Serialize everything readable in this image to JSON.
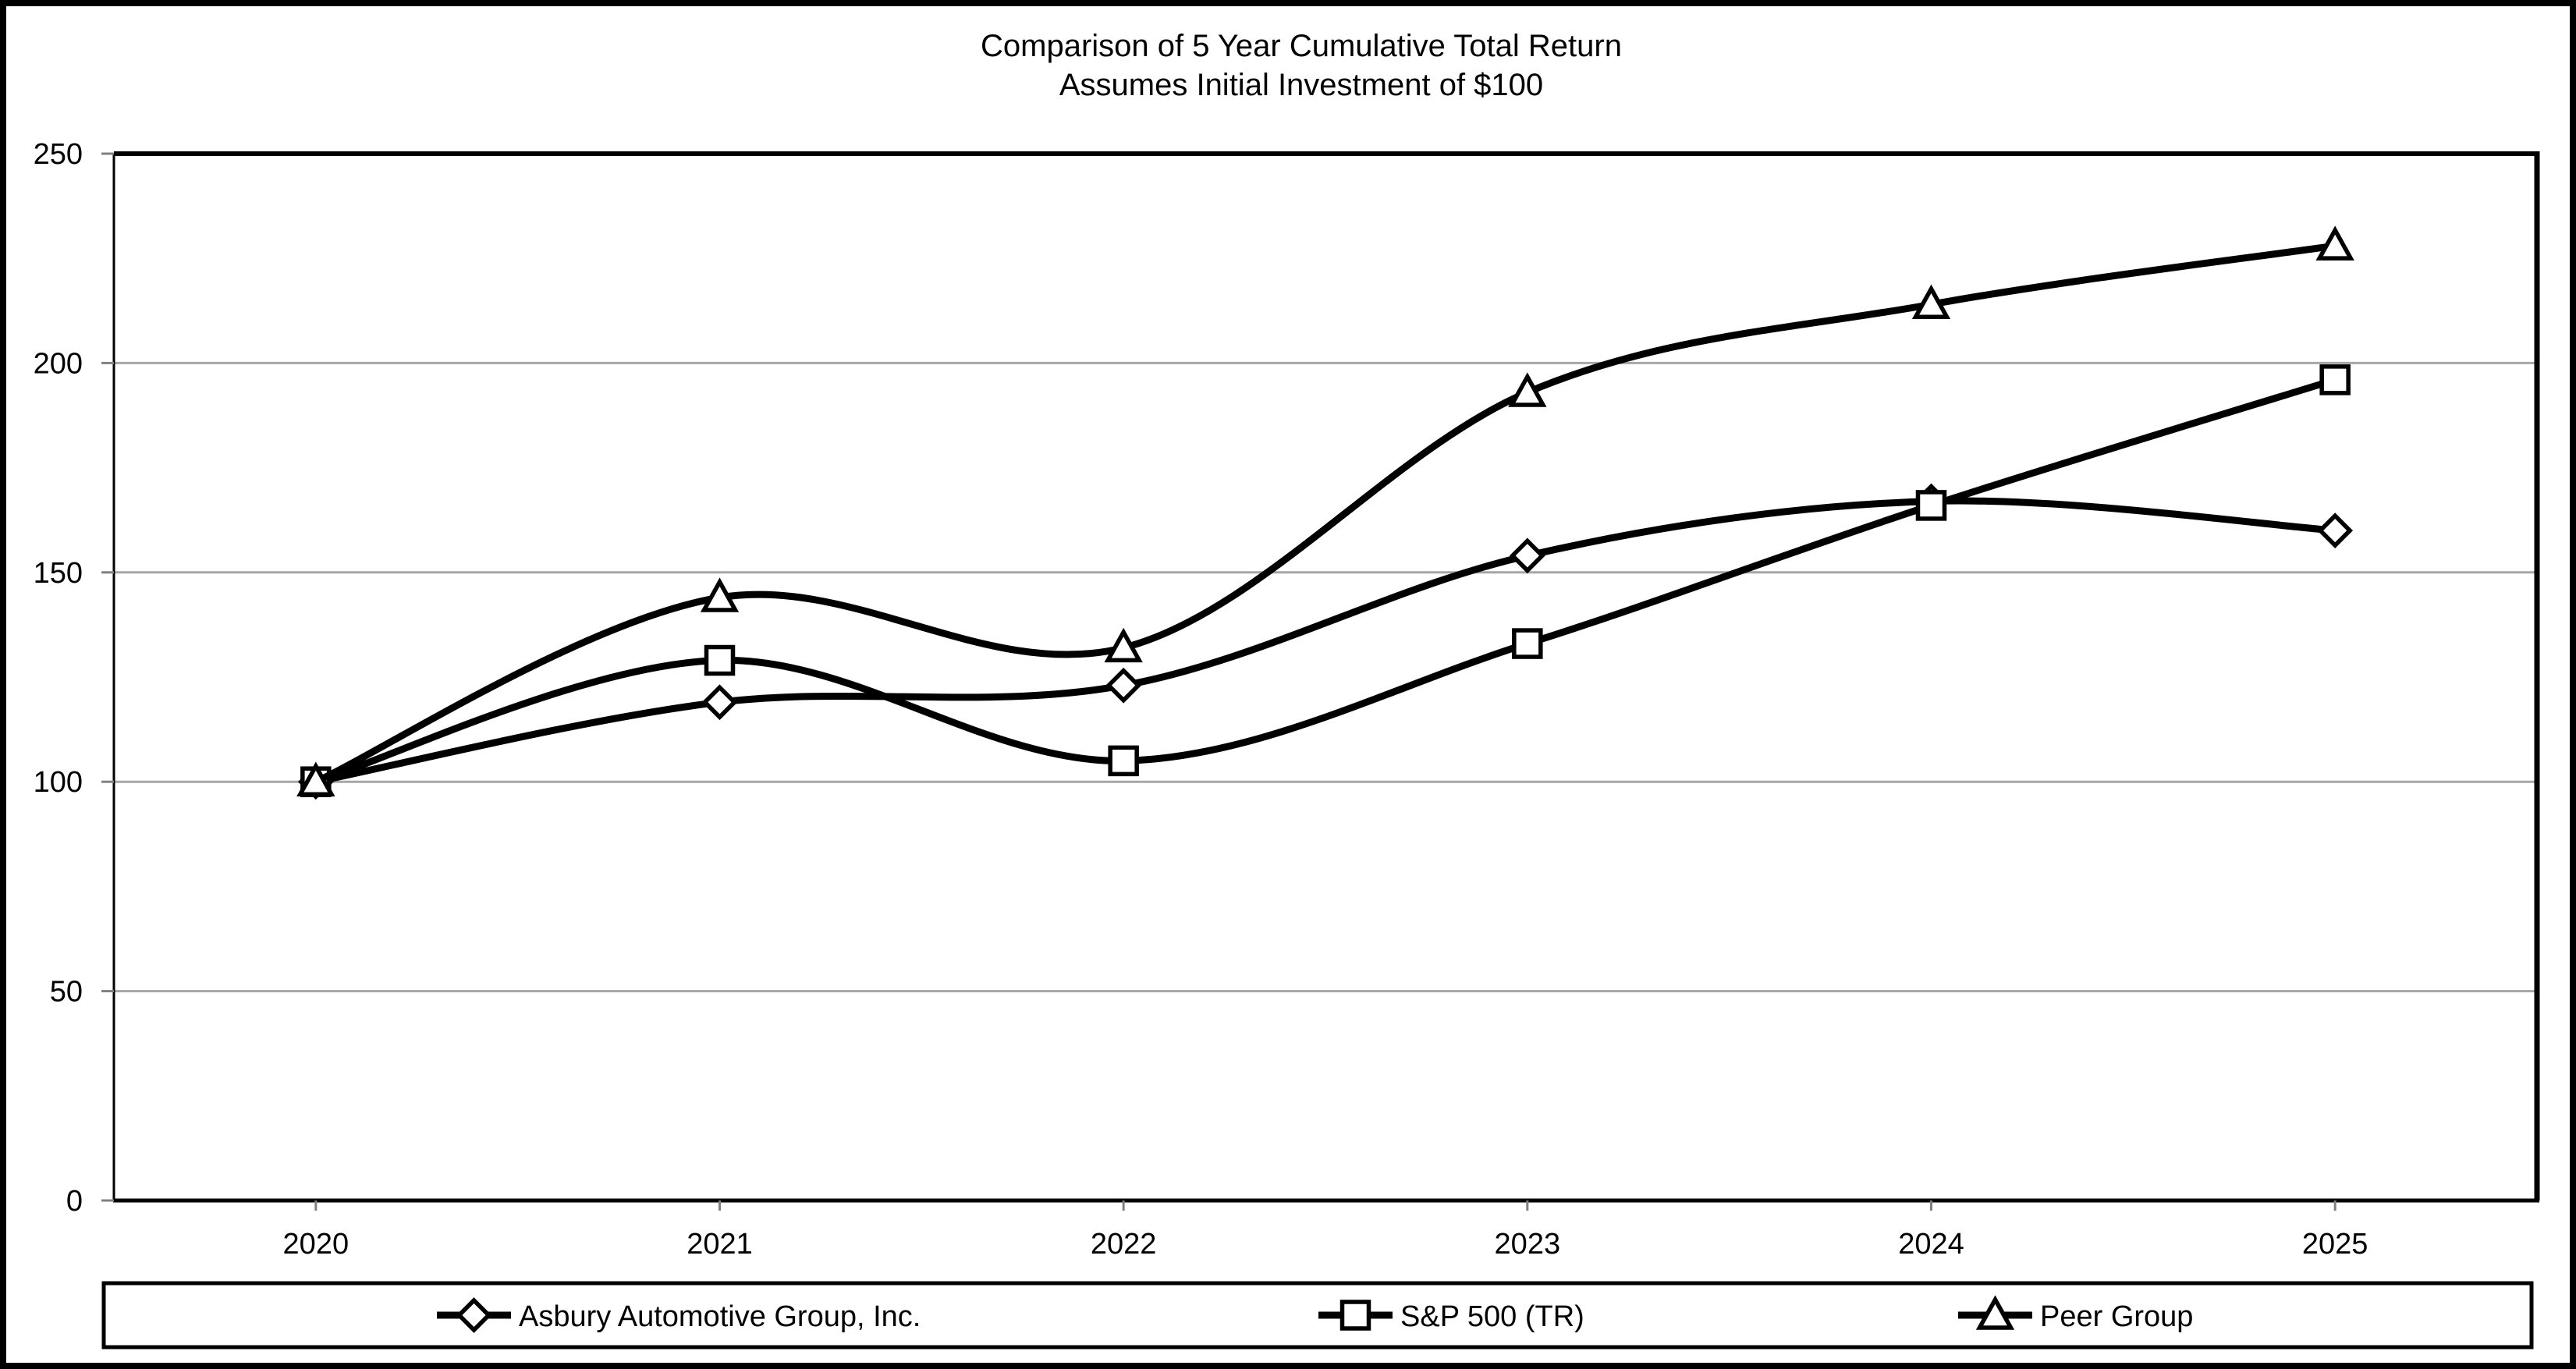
{
  "chart": {
    "colors": {
      "series_line": "#000000",
      "marker_fill": "#ffffff",
      "marker_stroke": "#000000",
      "gridline": "#a6a6a6",
      "tick": "#808080",
      "frame": "#000000",
      "background": "#ffffff"
    }
  },
  "chart_data": {
    "type": "line",
    "smoothed": true,
    "title": "Comparison of 5 Year Cumulative Total Return",
    "subtitle": "Assumes Initial Investment of $100",
    "categories": [
      "2020",
      "2021",
      "2022",
      "2023",
      "2024",
      "2025"
    ],
    "series": [
      {
        "name": "Asbury Automotive Group, Inc.",
        "marker": "diamond",
        "values": [
          100,
          119,
          123,
          154,
          167,
          160
        ]
      },
      {
        "name": "S&P 500 (TR)",
        "marker": "square",
        "values": [
          100,
          129,
          105,
          133,
          166,
          196
        ]
      },
      {
        "name": "Peer Group",
        "marker": "triangle",
        "values": [
          100,
          144,
          132,
          193,
          214,
          228
        ]
      }
    ],
    "xlabel": "",
    "ylabel": "",
    "ylim": [
      0,
      250
    ],
    "yticks": [
      0,
      50,
      100,
      150,
      200,
      250
    ],
    "grid": true,
    "legend_position": "bottom"
  }
}
